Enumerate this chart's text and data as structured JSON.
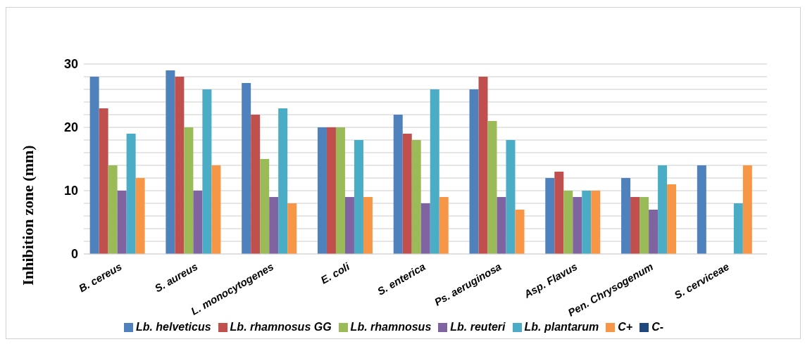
{
  "chart_data": {
    "type": "bar",
    "ylabel": "Inhibition zone (mm)",
    "categories": [
      "B. cereus",
      "S. aureus",
      "L. monocytogenes",
      "E. coli",
      "S. enterica",
      "Ps. aeruginosa",
      "Asp. Flavus",
      "Pen. Chrysogenum",
      "S. cerviceae"
    ],
    "series": [
      {
        "name": "Lb. helveticus",
        "color": "#4f81bd",
        "values": [
          28,
          29,
          27,
          20,
          22,
          26,
          12,
          12,
          14
        ]
      },
      {
        "name": "Lb. rhamnosus GG",
        "color": "#c0504d",
        "values": [
          23,
          28,
          22,
          20,
          19,
          28,
          13,
          9,
          0
        ]
      },
      {
        "name": "Lb. rhamnosus",
        "color": "#9bbb59",
        "values": [
          14,
          20,
          15,
          20,
          18,
          21,
          10,
          9,
          0
        ]
      },
      {
        "name": "Lb. reuteri",
        "color": "#8064a2",
        "values": [
          10,
          10,
          9,
          9,
          8,
          9,
          9,
          7,
          0
        ]
      },
      {
        "name": "Lb. plantarum",
        "color": "#4bacc6",
        "values": [
          19,
          26,
          23,
          18,
          26,
          18,
          10,
          14,
          8
        ]
      },
      {
        "name": "C+",
        "color": "#f79646",
        "values": [
          12,
          14,
          8,
          9,
          9,
          7,
          10,
          11,
          14
        ]
      },
      {
        "name": "C-",
        "color": "#1f497d",
        "values": [
          0,
          0,
          0,
          0,
          0,
          0,
          0,
          0,
          0
        ]
      }
    ],
    "ylim": [
      0,
      30
    ],
    "yticks": [
      0,
      {
        "value": 2,
        "label": null
      },
      {
        "value": 4,
        "label": null
      },
      {
        "value": 6,
        "label": null
      },
      {
        "value": 8,
        "label": null
      },
      10,
      {
        "value": 12,
        "label": null
      },
      {
        "value": 14,
        "label": null
      },
      {
        "value": 16,
        "label": null
      },
      {
        "value": 18,
        "label": null
      },
      20,
      {
        "value": 22,
        "label": null
      },
      {
        "value": 24,
        "label": null
      },
      {
        "value": 26,
        "label": null
      },
      {
        "value": 28,
        "label": null
      },
      30
    ],
    "grid": "y",
    "legend": "bottom"
  }
}
